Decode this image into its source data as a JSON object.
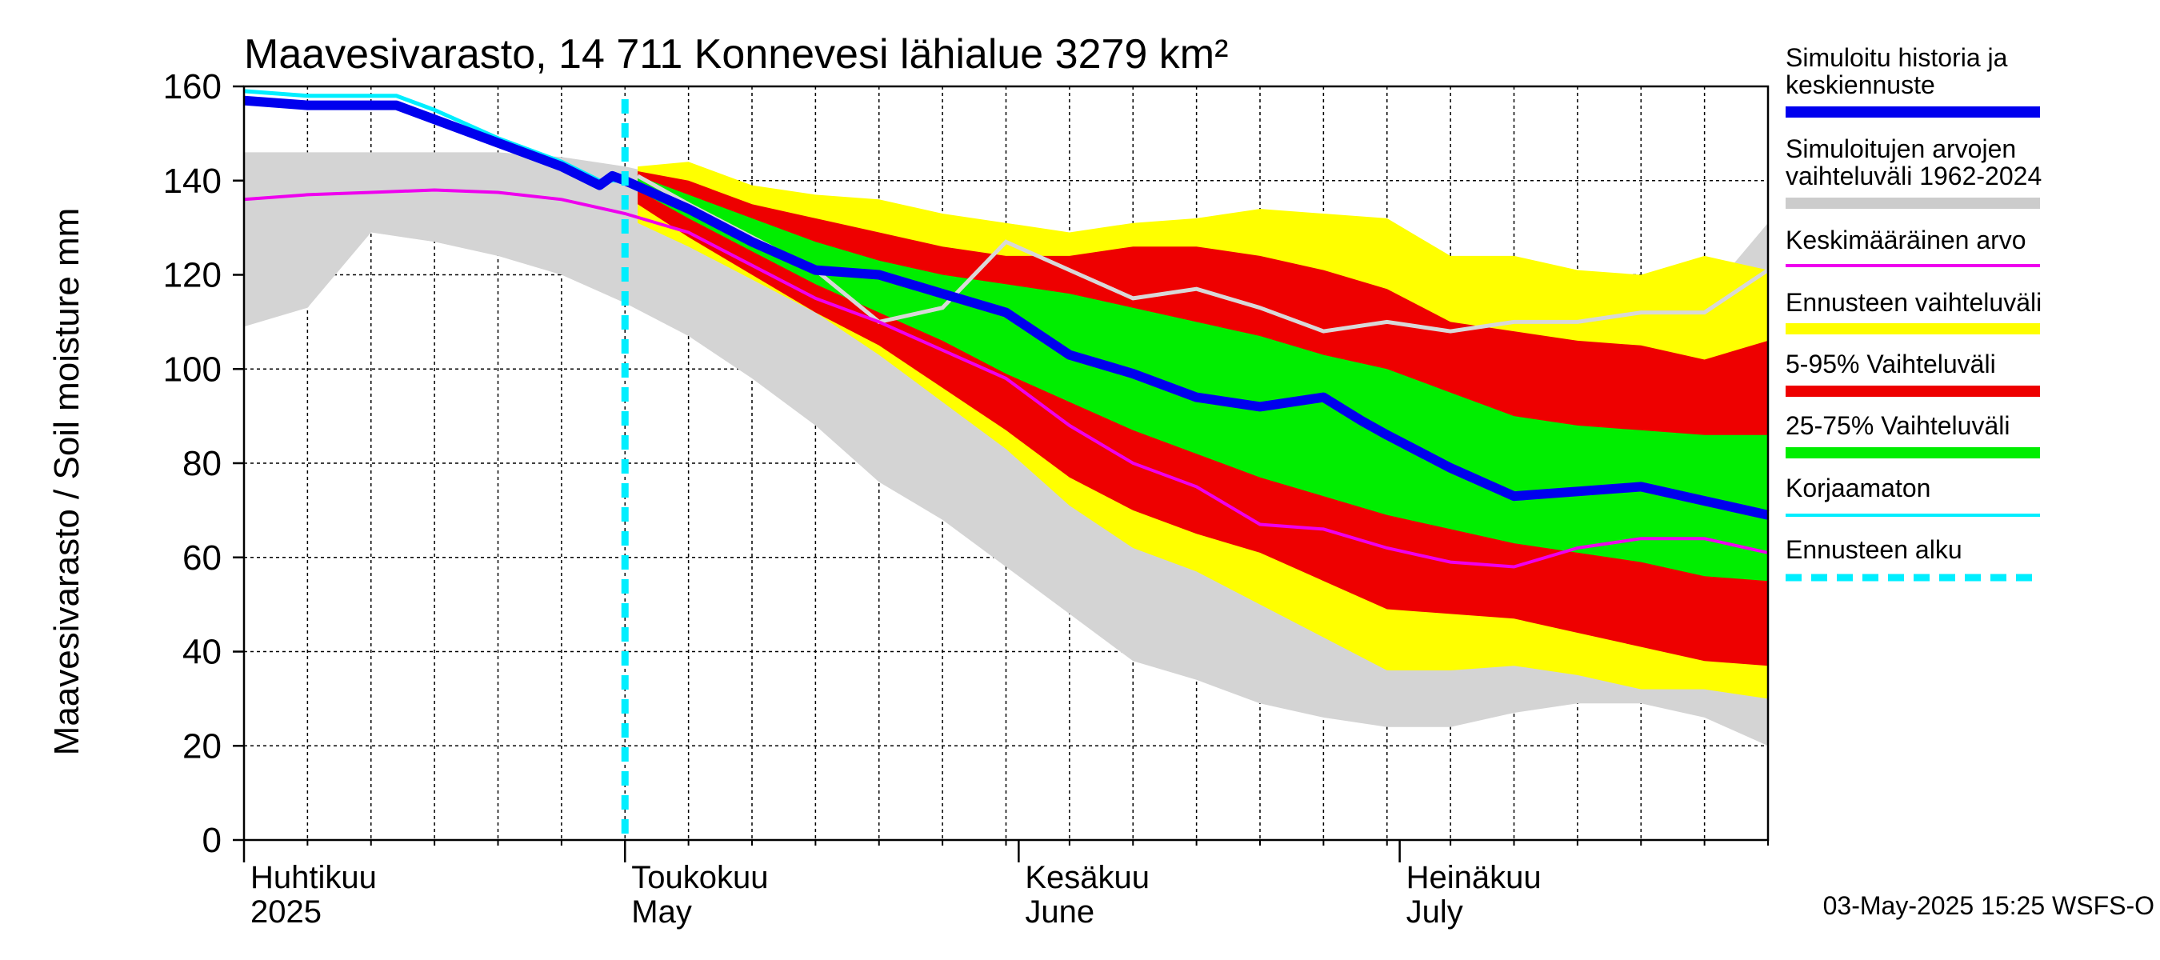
{
  "chart_data": {
    "type": "area",
    "title": "Maavesivarasto, 14 711 Konnevesi lähialue 3279 km²",
    "ylabel": "Maavesivarasto / Soil moisture   mm",
    "ylim": [
      0,
      160
    ],
    "yticks": [
      "0",
      "20",
      "40",
      "60",
      "80",
      "100",
      "120",
      "140",
      "160"
    ],
    "x_day_range": [
      0,
      120
    ],
    "forecast_start_day": 30,
    "months": [
      {
        "label_fi": "Huhtikuu",
        "label_en": "2025",
        "day": 0
      },
      {
        "label_fi": "Toukokuu",
        "label_en": "May",
        "day": 30
      },
      {
        "label_fi": "Kesäkuu",
        "label_en": "June",
        "day": 61
      },
      {
        "label_fi": "Heinäkuu",
        "label_en": "July",
        "day": 91
      }
    ],
    "legend": [
      {
        "label": "Simuloitu historia ja keskiennuste",
        "color": "#0000ee",
        "style": "thick"
      },
      {
        "label": "Simuloitujen arvojen vaihteluväli 1962-2024",
        "color": "#cccccc",
        "style": "band"
      },
      {
        "label": "Keskimääräinen arvo",
        "color": "#ee00ee",
        "style": "line"
      },
      {
        "label": "Ennusteen vaihteluväli",
        "color": "#ffff00",
        "style": "band"
      },
      {
        "label": "5-95% Vaihteluväli",
        "color": "#ee0000",
        "style": "band"
      },
      {
        "label": "25-75% Vaihteluväli",
        "color": "#00ee00",
        "style": "band"
      },
      {
        "label": "Korjaamaton",
        "color": "#00eeff",
        "style": "line"
      },
      {
        "label": "Ennusteen alku",
        "color": "#00eeff",
        "style": "dashed"
      }
    ],
    "footer": "03-May-2025 15:25 WSFS-O",
    "series": {
      "history_band": {
        "x": [
          0,
          5,
          10,
          15,
          20,
          25,
          30,
          35,
          40,
          45,
          50,
          55,
          60,
          65,
          70,
          75,
          80,
          85,
          90,
          95,
          100,
          105,
          110,
          115,
          120
        ],
        "upper": [
          146,
          146,
          146,
          146,
          146,
          145,
          143,
          140,
          135,
          130,
          126,
          122,
          118,
          118,
          117,
          116,
          113,
          112,
          112,
          111,
          113,
          113,
          113,
          115,
          131
        ],
        "lower": [
          109,
          113,
          129,
          127,
          124,
          120,
          114,
          107,
          98,
          88,
          76,
          68,
          58,
          48,
          38,
          34,
          29,
          26,
          24,
          24,
          27,
          29,
          29,
          26,
          20
        ]
      },
      "forecast_full": {
        "x": [
          31,
          35,
          40,
          45,
          50,
          55,
          60,
          65,
          70,
          75,
          80,
          85,
          90,
          95,
          100,
          105,
          110,
          115,
          120
        ],
        "upper": [
          143,
          144,
          139,
          137,
          136,
          133,
          131,
          129,
          131,
          132,
          134,
          133,
          132,
          124,
          124,
          121,
          120,
          124,
          121
        ],
        "lower": [
          131,
          126,
          119,
          112,
          103,
          93,
          83,
          71,
          62,
          57,
          50,
          43,
          36,
          36,
          37,
          35,
          32,
          32,
          30
        ]
      },
      "forecast_5_95": {
        "x": [
          31,
          35,
          40,
          45,
          50,
          55,
          60,
          65,
          70,
          75,
          80,
          85,
          90,
          95,
          100,
          105,
          110,
          115,
          120
        ],
        "upper": [
          142,
          140,
          135,
          132,
          129,
          126,
          124,
          124,
          126,
          126,
          124,
          121,
          117,
          110,
          108,
          106,
          105,
          102,
          106
        ],
        "lower": [
          135,
          128,
          120,
          112,
          105,
          96,
          87,
          77,
          70,
          65,
          61,
          55,
          49,
          48,
          47,
          44,
          41,
          38,
          37
        ]
      },
      "forecast_25_75": {
        "x": [
          31,
          35,
          40,
          45,
          50,
          55,
          60,
          65,
          70,
          75,
          80,
          85,
          90,
          95,
          100,
          105,
          110,
          115,
          120
        ],
        "upper": [
          141,
          137,
          132,
          127,
          123,
          120,
          118,
          116,
          113,
          110,
          107,
          103,
          100,
          95,
          90,
          88,
          87,
          86,
          86
        ],
        "lower": [
          138,
          132,
          125,
          118,
          112,
          106,
          99,
          93,
          87,
          82,
          77,
          73,
          69,
          66,
          63,
          61,
          59,
          56,
          55
        ]
      },
      "mean": {
        "x": [
          0,
          5,
          10,
          15,
          20,
          25,
          30,
          35,
          40,
          45,
          50,
          55,
          60,
          65,
          70,
          75,
          80,
          85,
          90,
          95,
          100,
          105,
          110,
          115,
          120
        ],
        "y": [
          136,
          137,
          137.5,
          138,
          137.5,
          136,
          133,
          129,
          122,
          115,
          110,
          104,
          98,
          88,
          80,
          75,
          67,
          66,
          62,
          59,
          58,
          62,
          64,
          64,
          61
        ]
      },
      "uncorrected": {
        "x": [
          0,
          5,
          10,
          12,
          15,
          20,
          25,
          28,
          30
        ],
        "y": [
          159,
          158,
          158,
          158,
          155,
          149,
          144,
          140,
          140
        ]
      },
      "history_forecast": {
        "x": [
          0,
          5,
          10,
          12,
          15,
          20,
          25,
          28,
          29,
          30,
          35,
          40,
          45,
          50,
          55,
          60,
          65,
          70,
          75,
          80,
          85,
          88,
          90,
          95,
          100,
          105,
          110,
          115,
          120
        ],
        "y": [
          157,
          156,
          156,
          156,
          153,
          148,
          143,
          139,
          141,
          140,
          134,
          127,
          121,
          120,
          116,
          112,
          103,
          99,
          94,
          92,
          94,
          89,
          86,
          79,
          73,
          74,
          75,
          72,
          69
        ]
      },
      "previous_forecast": {
        "x": [
          31,
          35,
          40,
          45,
          50,
          55,
          60,
          65,
          70,
          75,
          80,
          85,
          90,
          95,
          100,
          105,
          110,
          115,
          120
        ],
        "y": [
          141,
          135,
          128,
          121,
          110,
          113,
          127,
          121,
          115,
          117,
          113,
          108,
          110,
          108,
          110,
          110,
          112,
          112,
          121
        ]
      }
    }
  }
}
